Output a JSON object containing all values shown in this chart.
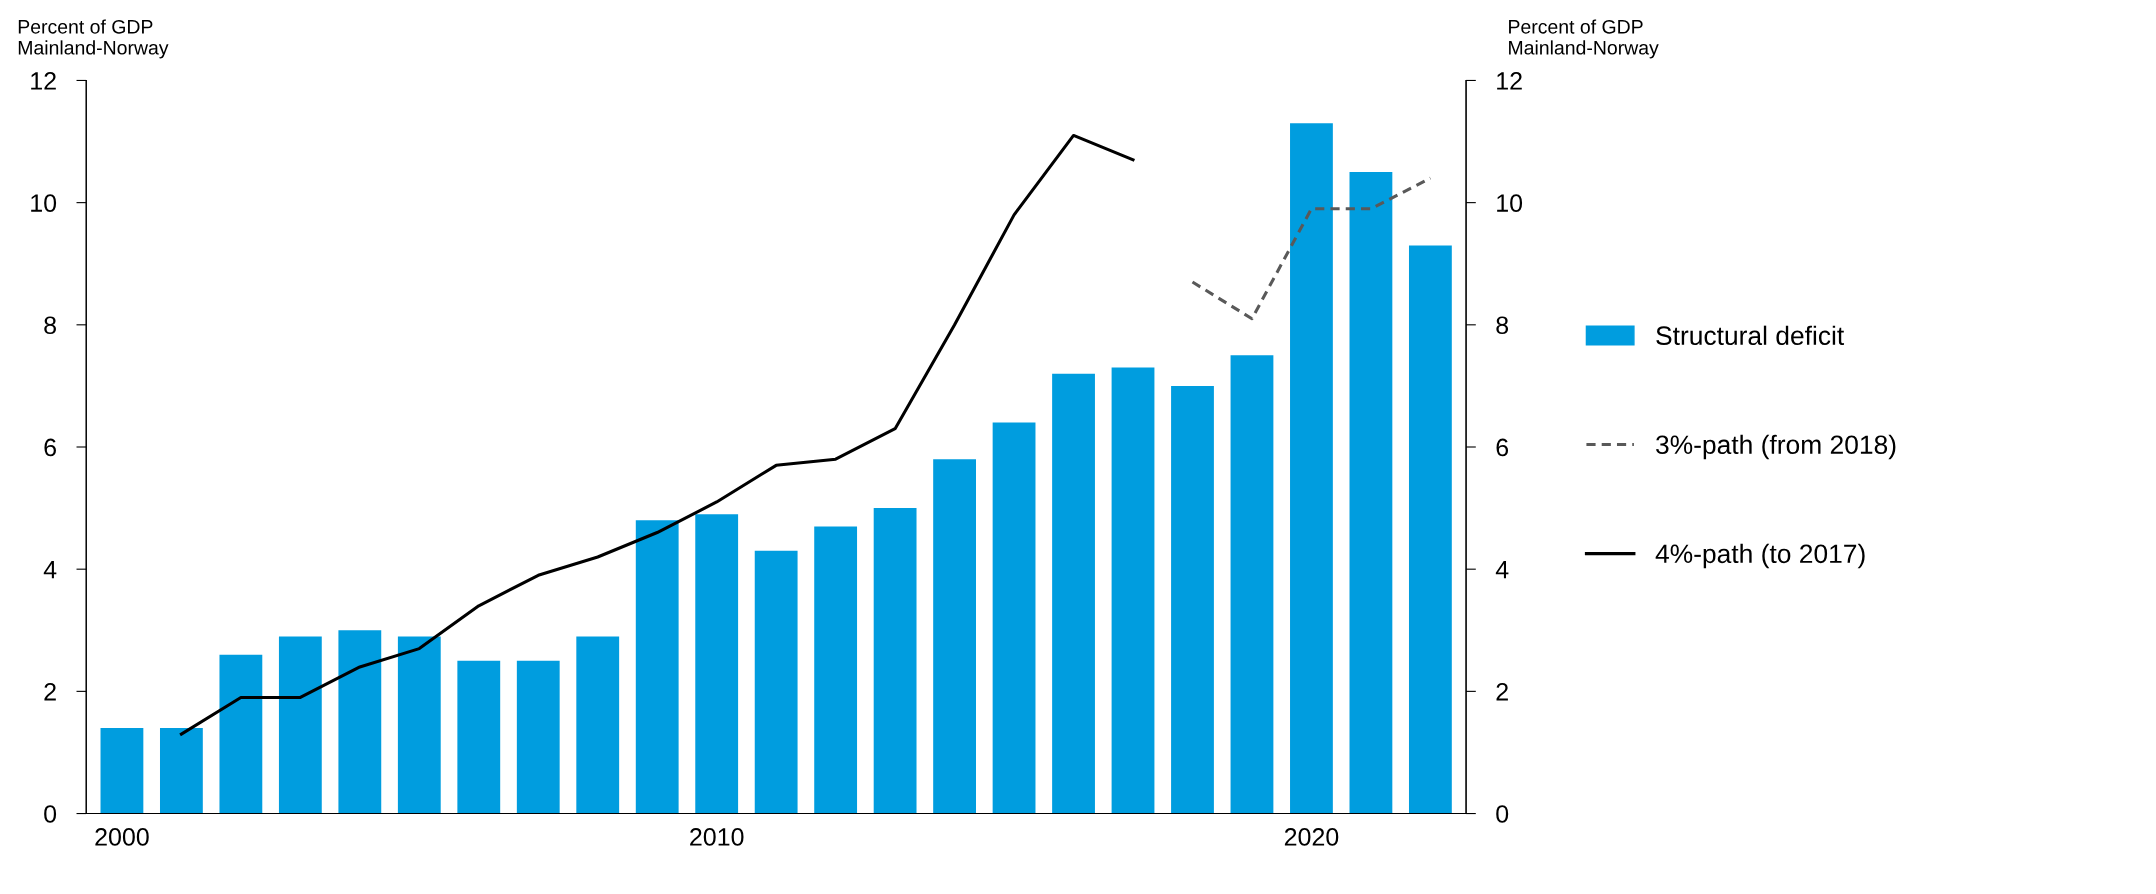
{
  "chart_data": {
    "type": "bar",
    "ylabel": "Percent of GDP\nMainland-Norway",
    "y2label": "Percent of GDP\nMainland-Norway",
    "categories": [
      "2000",
      null,
      null,
      null,
      null,
      null,
      null,
      null,
      null,
      null,
      "2010",
      null,
      null,
      null,
      null,
      null,
      null,
      null,
      null,
      null,
      "2020",
      null,
      null
    ],
    "series": [
      {
        "name": "Structural deficit",
        "color": "#009ddf",
        "values": [
          1.4,
          1.4,
          2.6,
          2.9,
          3.0,
          2.9,
          2.5,
          2.5,
          2.9,
          4.8,
          4.9,
          4.3,
          4.7,
          5.0,
          5.8,
          6.4,
          7.2,
          7.3,
          7.0,
          7.5,
          11.3,
          10.5,
          9.3
        ]
      },
      {
        "name": "3%-path (from 2018)",
        "type": "line",
        "line_style": "dashed",
        "color": "#595959",
        "values": [
          null,
          null,
          null,
          null,
          null,
          null,
          null,
          null,
          null,
          null,
          null,
          null,
          null,
          null,
          null,
          null,
          null,
          null,
          8.7,
          8.1,
          9.9,
          9.9,
          10.4
        ]
      },
      {
        "name": "4%-path (to 2017)",
        "type": "line",
        "line_style": "solid",
        "color": "#000000",
        "values": [
          null,
          1.3,
          1.9,
          1.9,
          2.4,
          2.7,
          3.4,
          3.9,
          4.2,
          4.6,
          5.1,
          5.7,
          5.8,
          6.3,
          8.0,
          9.8,
          11.1,
          10.7,
          null,
          null,
          null,
          null,
          null
        ]
      }
    ],
    "ylim": [
      0,
      12
    ],
    "yticks": [
      0,
      2,
      4,
      6,
      8,
      10,
      12
    ],
    "y2lim": [
      0,
      12
    ],
    "y2ticks": [
      0,
      2,
      4,
      6,
      8,
      10,
      12
    ],
    "grid": false,
    "legend": "right"
  }
}
